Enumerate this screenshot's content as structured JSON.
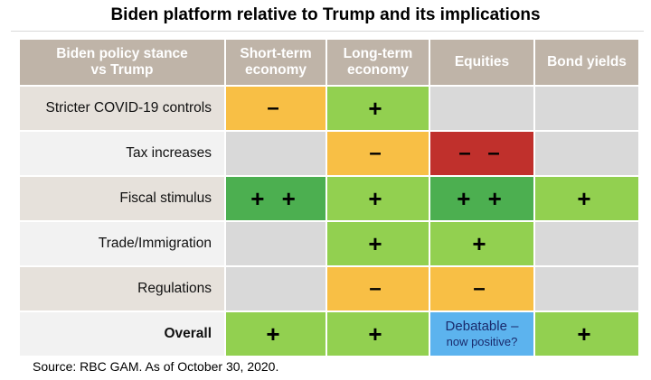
{
  "title": "Biden platform relative to Trump and its implications",
  "source": "Source: RBC GAM. As of October 30, 2020.",
  "colors": {
    "header": "#bfb4a8",
    "neutral": "#d9d9d9",
    "positive": "#92d050",
    "strong_positive": "#4caf50",
    "negative": "#f8bf45",
    "strong_negative": "#c0302c",
    "debatable": "#5cb3ee"
  },
  "chart_data": {
    "type": "table",
    "title": "Biden platform relative to Trump and its implications",
    "columns": [
      {
        "line1": "Biden policy stance",
        "line2": "vs Trump"
      },
      {
        "line1": "Short-term",
        "line2": "economy"
      },
      {
        "line1": "Long-term",
        "line2": "economy"
      },
      {
        "line1": "Equities",
        "line2": ""
      },
      {
        "line1": "Bond yields",
        "line2": ""
      }
    ],
    "rows": [
      {
        "label": "Stricter COVID-19 controls",
        "bold": false,
        "cells": [
          {
            "value": "–",
            "rating": "negative"
          },
          {
            "value": "+",
            "rating": "positive"
          },
          {
            "value": "",
            "rating": "neutral"
          },
          {
            "value": "",
            "rating": "neutral"
          }
        ]
      },
      {
        "label": "Tax increases",
        "bold": false,
        "cells": [
          {
            "value": "",
            "rating": "neutral"
          },
          {
            "value": "–",
            "rating": "negative"
          },
          {
            "value": "– –",
            "rating": "strong_negative"
          },
          {
            "value": "",
            "rating": "neutral"
          }
        ]
      },
      {
        "label": "Fiscal stimulus",
        "bold": false,
        "cells": [
          {
            "value": "+ +",
            "rating": "strong_positive"
          },
          {
            "value": "+",
            "rating": "positive"
          },
          {
            "value": "+ +",
            "rating": "strong_positive"
          },
          {
            "value": "+",
            "rating": "positive"
          }
        ]
      },
      {
        "label": "Trade/Immigration",
        "bold": false,
        "cells": [
          {
            "value": "",
            "rating": "neutral"
          },
          {
            "value": "+",
            "rating": "positive"
          },
          {
            "value": "+",
            "rating": "positive"
          },
          {
            "value": "",
            "rating": "neutral"
          }
        ]
      },
      {
        "label": "Regulations",
        "bold": false,
        "cells": [
          {
            "value": "",
            "rating": "neutral"
          },
          {
            "value": "–",
            "rating": "negative"
          },
          {
            "value": "–",
            "rating": "negative"
          },
          {
            "value": "",
            "rating": "neutral"
          }
        ]
      },
      {
        "label": "Overall",
        "bold": true,
        "cells": [
          {
            "value": "+",
            "rating": "positive"
          },
          {
            "value": "+",
            "rating": "positive"
          },
          {
            "value": "",
            "rating": "debatable",
            "note_line1": "Debatable –",
            "note_line2": "now positive?"
          },
          {
            "value": "+",
            "rating": "positive"
          }
        ]
      }
    ]
  }
}
